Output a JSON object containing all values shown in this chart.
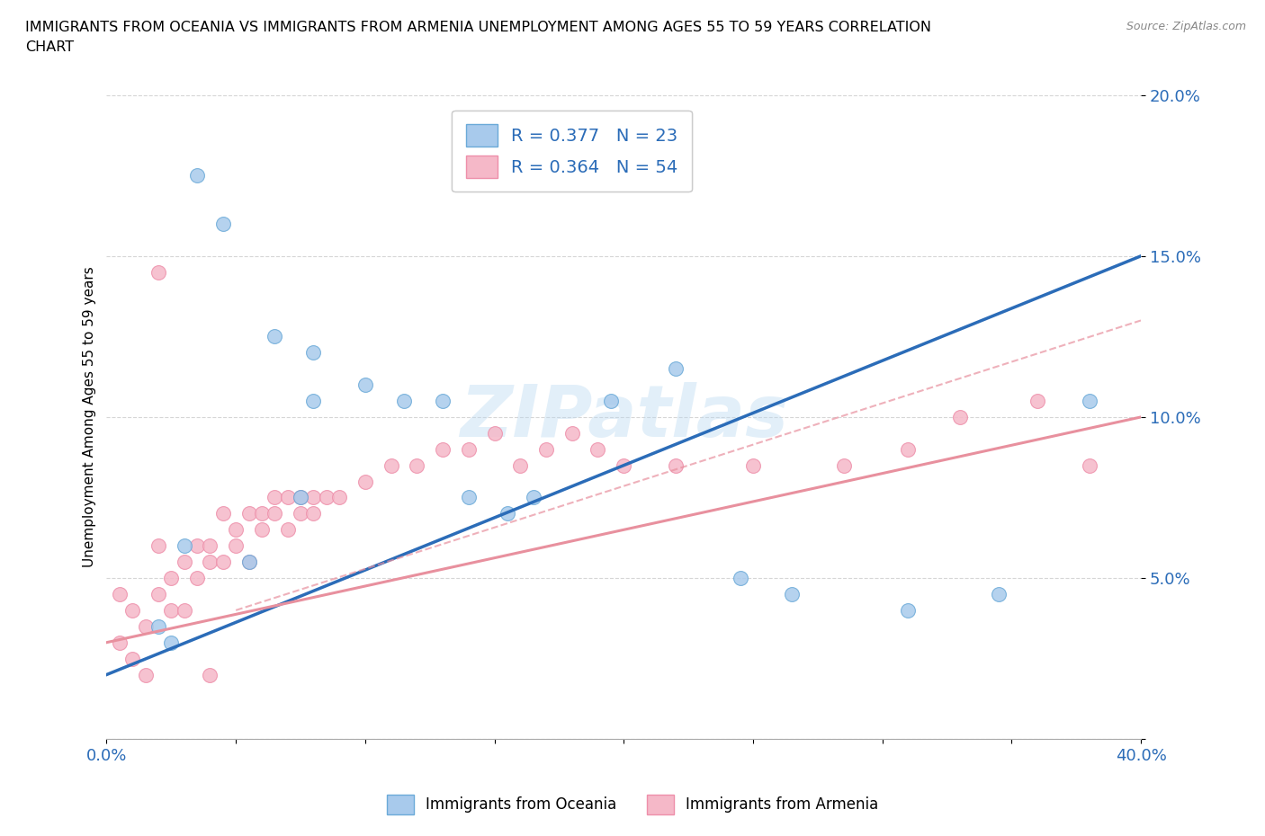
{
  "title_line1": "IMMIGRANTS FROM OCEANIA VS IMMIGRANTS FROM ARMENIA UNEMPLOYMENT AMONG AGES 55 TO 59 YEARS CORRELATION",
  "title_line2": "CHART",
  "source_text": "Source: ZipAtlas.com",
  "ylabel": "Unemployment Among Ages 55 to 59 years",
  "xlim": [
    0.0,
    0.4
  ],
  "ylim": [
    0.0,
    0.2
  ],
  "xtick_positions": [
    0.0,
    0.05,
    0.1,
    0.15,
    0.2,
    0.25,
    0.3,
    0.35,
    0.4
  ],
  "xtick_labels": [
    "0.0%",
    "",
    "",
    "",
    "",
    "",
    "",
    "",
    "40.0%"
  ],
  "ytick_positions": [
    0.0,
    0.05,
    0.1,
    0.15,
    0.2
  ],
  "ytick_labels": [
    "",
    "5.0%",
    "10.0%",
    "15.0%",
    "20.0%"
  ],
  "oceania_color": "#A8CAEC",
  "oceania_edge": "#6BAAD8",
  "armenia_color": "#F5B8C8",
  "armenia_edge": "#EE8FAA",
  "trend_oceania_color": "#2B6CB8",
  "trend_armenia_solid_color": "#E8909E",
  "trend_armenia_dashed_color": "#E8909E",
  "legend_oceania_label": "R = 0.377   N = 23",
  "legend_armenia_label": "R = 0.364   N = 54",
  "legend_label_oceania": "Immigrants from Oceania",
  "legend_label_armenia": "Immigrants from Armenia",
  "watermark": "ZIPatlas",
  "tick_color": "#2B6CB8",
  "oceania_x": [
    0.035,
    0.045,
    0.065,
    0.08,
    0.08,
    0.1,
    0.115,
    0.13,
    0.14,
    0.155,
    0.165,
    0.195,
    0.22,
    0.245,
    0.265,
    0.31,
    0.345,
    0.38,
    0.02,
    0.025,
    0.03,
    0.055,
    0.075
  ],
  "oceania_y": [
    0.175,
    0.16,
    0.125,
    0.12,
    0.105,
    0.11,
    0.105,
    0.105,
    0.075,
    0.07,
    0.075,
    0.105,
    0.115,
    0.05,
    0.045,
    0.04,
    0.045,
    0.105,
    0.035,
    0.03,
    0.06,
    0.055,
    0.075
  ],
  "armenia_x": [
    0.005,
    0.01,
    0.015,
    0.02,
    0.025,
    0.03,
    0.035,
    0.04,
    0.045,
    0.05,
    0.055,
    0.06,
    0.065,
    0.07,
    0.075,
    0.08,
    0.005,
    0.01,
    0.015,
    0.02,
    0.025,
    0.03,
    0.035,
    0.04,
    0.045,
    0.05,
    0.055,
    0.06,
    0.065,
    0.07,
    0.075,
    0.08,
    0.085,
    0.09,
    0.1,
    0.11,
    0.12,
    0.13,
    0.14,
    0.15,
    0.16,
    0.17,
    0.18,
    0.19,
    0.2,
    0.22,
    0.25,
    0.285,
    0.31,
    0.33,
    0.36,
    0.38,
    0.02,
    0.04
  ],
  "armenia_y": [
    0.045,
    0.04,
    0.035,
    0.06,
    0.05,
    0.055,
    0.06,
    0.06,
    0.07,
    0.065,
    0.07,
    0.065,
    0.075,
    0.075,
    0.07,
    0.075,
    0.03,
    0.025,
    0.02,
    0.045,
    0.04,
    0.04,
    0.05,
    0.055,
    0.055,
    0.06,
    0.055,
    0.07,
    0.07,
    0.065,
    0.075,
    0.07,
    0.075,
    0.075,
    0.08,
    0.085,
    0.085,
    0.09,
    0.09,
    0.095,
    0.085,
    0.09,
    0.095,
    0.09,
    0.085,
    0.085,
    0.085,
    0.085,
    0.09,
    0.1,
    0.105,
    0.085,
    0.145,
    0.02
  ]
}
